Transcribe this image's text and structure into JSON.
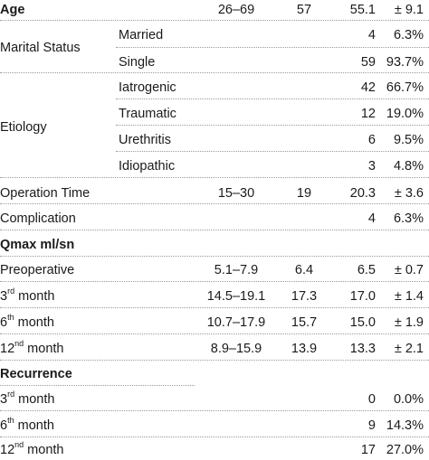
{
  "rows": {
    "age": {
      "label": "Age",
      "range": "26–69",
      "median": "57",
      "value": "55.1",
      "pct": "± 9.1"
    },
    "marital": {
      "label": "Marital Status",
      "married": {
        "label": "Married",
        "value": "4",
        "pct": "6.3%"
      },
      "single": {
        "label": "Single",
        "value": "59",
        "pct": "93.7%"
      }
    },
    "etiology": {
      "label": "Etiology",
      "iatrogenic": {
        "label": "Iatrogenic",
        "value": "42",
        "pct": "66.7%"
      },
      "traumatic": {
        "label": "Traumatic",
        "value": "12",
        "pct": "19.0%"
      },
      "urethritis": {
        "label": "Urethritis",
        "value": "6",
        "pct": "9.5%"
      },
      "idiopathic": {
        "label": "Idiopathic",
        "value": "3",
        "pct": "4.8%"
      }
    },
    "operation_time": {
      "label": "Operation Time",
      "range": "15–30",
      "median": "19",
      "value": "20.3",
      "pct": "± 3.6"
    },
    "complication": {
      "label": "Complication",
      "value": "4",
      "pct": "6.3%"
    },
    "qmax": {
      "label": "Qmax ml/sn",
      "preoperative": {
        "label": "Preoperative",
        "range": "5.1–7.9",
        "median": "6.4",
        "value": "6.5",
        "pct": "± 0.7"
      },
      "m3": {
        "num": "3",
        "sup": "rd",
        "suffix": " month",
        "range": "14.5–19.1",
        "median": "17.3",
        "value": "17.0",
        "pct": "± 1.4"
      },
      "m6": {
        "num": "6",
        "sup": "th",
        "suffix": " month",
        "range": "10.7–17.9",
        "median": "15.7",
        "value": "15.0",
        "pct": "± 1.9"
      },
      "m12": {
        "num": "12",
        "sup": "nd",
        "suffix": " month",
        "range": "8.9–15.9",
        "median": "13.9",
        "value": "13.3",
        "pct": "± 2.1"
      }
    },
    "recurrence": {
      "label": "Recurrence",
      "m3": {
        "num": "3",
        "sup": "rd",
        "suffix": " month",
        "value": "0",
        "pct": "0.0%"
      },
      "m6": {
        "num": "6",
        "sup": "th",
        "suffix": " month",
        "value": "9",
        "pct": "14.3%"
      },
      "m12": {
        "num": "12",
        "sup": "nd",
        "suffix": " month",
        "value": "17",
        "pct": "27.0%"
      }
    }
  }
}
